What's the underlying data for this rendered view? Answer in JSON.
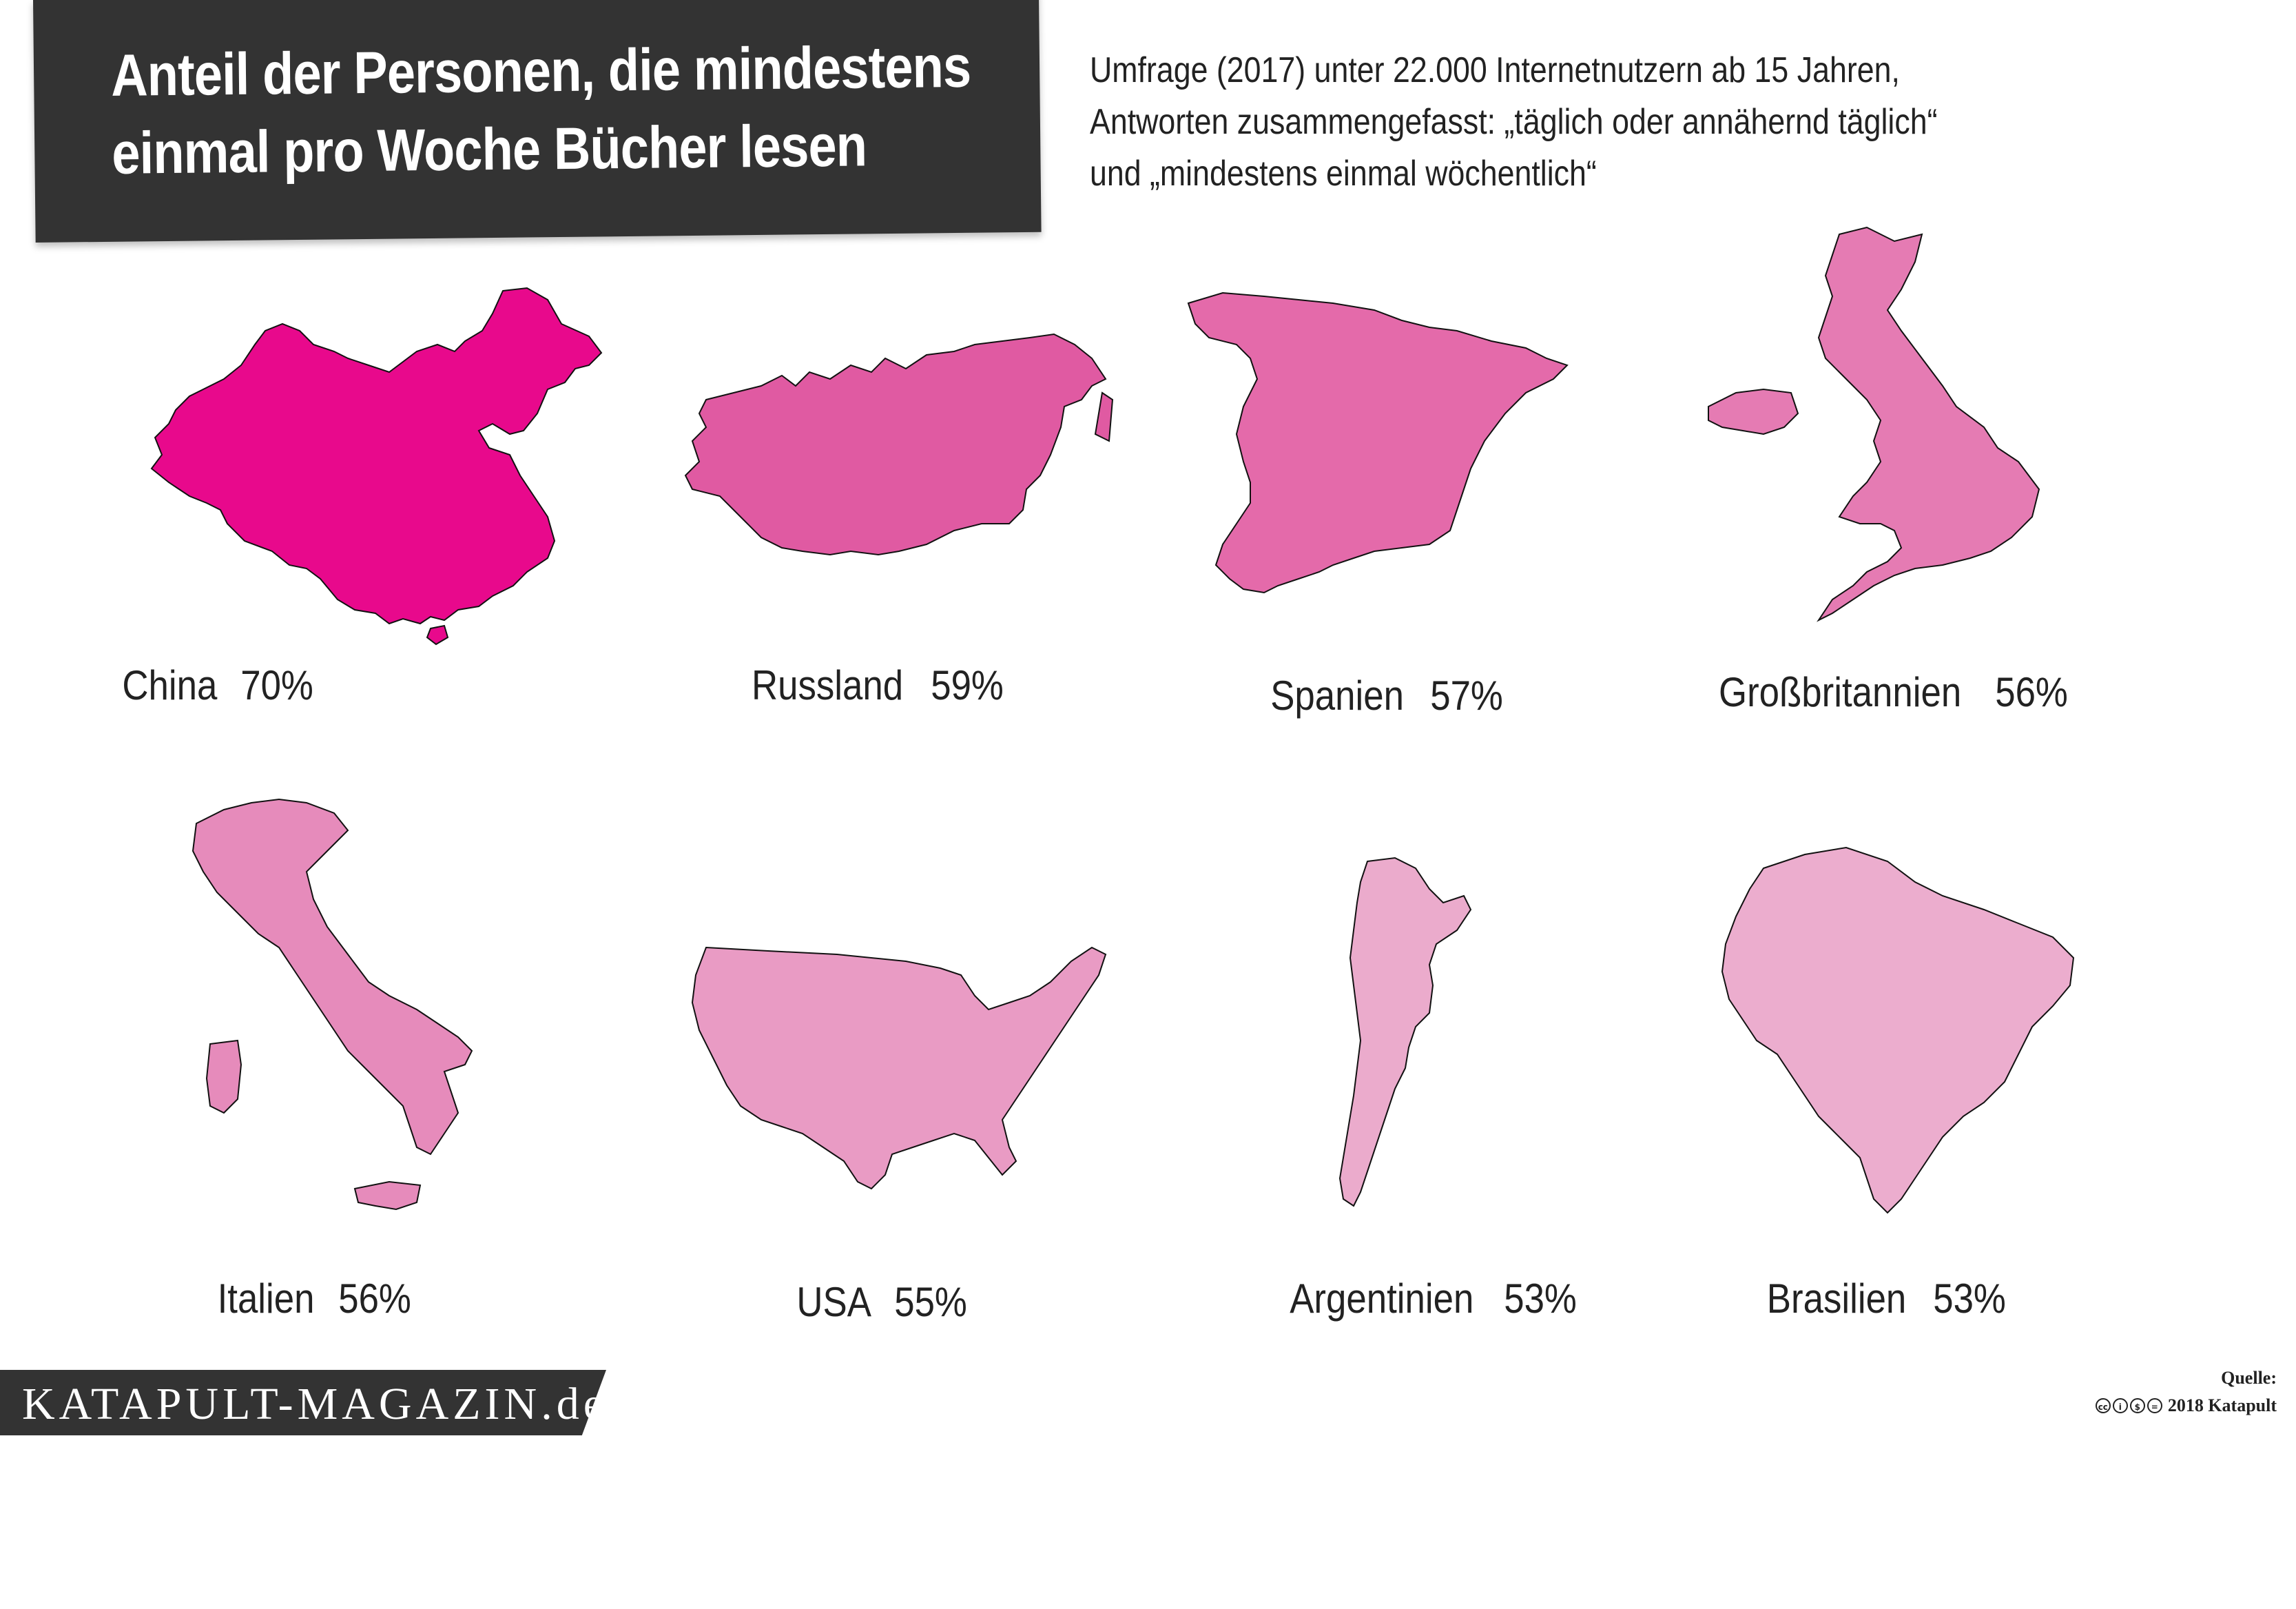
{
  "title": {
    "line1": "Anteil der Personen, die mindestens",
    "line2": "einmal pro Woche Bücher lesen"
  },
  "subtitle": {
    "line1": "Umfrage (2017) unter 22.000 Internetnutzern ab 15 Jahren,",
    "line2": "Antworten zusammengefasst: „täglich oder annähernd täglich“",
    "line3": "und „mindestens einmal wöchentlich“"
  },
  "countries": [
    {
      "name": "China",
      "value": "70%",
      "share": 70,
      "color": "#e8098c"
    },
    {
      "name": "Russland",
      "value": "59%",
      "share": 59,
      "color": "#e05aa2"
    },
    {
      "name": "Spanien",
      "value": "57%",
      "share": 57,
      "color": "#e46aaa"
    },
    {
      "name": "Großbritannien",
      "value": "56%",
      "share": 56,
      "color": "#e57bb3"
    },
    {
      "name": "Italien",
      "value": "56%",
      "share": 56,
      "color": "#e68bbb"
    },
    {
      "name": "USA",
      "value": "55%",
      "share": 55,
      "color": "#e99bc4"
    },
    {
      "name": "Argentinien",
      "value": "53%",
      "share": 53,
      "color": "#ebabcc"
    },
    {
      "name": "Brasilien",
      "value": "53%",
      "share": 53,
      "color": "#ecadce"
    }
  ],
  "footer": {
    "brand": "KATAPULT-MAGAZIN.de",
    "source_label": "Quelle:",
    "copyright": "2018 Katapult",
    "license_icons": [
      "cc-icon",
      "by-icon",
      "nc-icon",
      "nd-icon"
    ]
  }
}
